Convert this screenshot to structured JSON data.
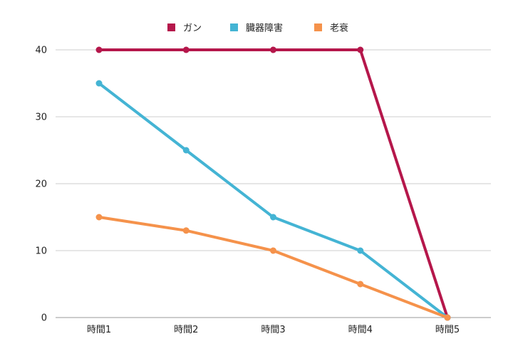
{
  "chart_data": {
    "type": "line",
    "categories": [
      "時間1",
      "時間2",
      "時間3",
      "時間4",
      "時間5"
    ],
    "series": [
      {
        "name": "ガン",
        "color": "#b5174b",
        "values": [
          40,
          40,
          40,
          40,
          0
        ]
      },
      {
        "name": "臓器障害",
        "color": "#44b4d4",
        "values": [
          35,
          25,
          15,
          10,
          0
        ]
      },
      {
        "name": "老衰",
        "color": "#f5924b",
        "values": [
          15,
          13,
          10,
          5,
          0
        ]
      }
    ],
    "yticks": [
      "0",
      "10",
      "20",
      "30",
      "40"
    ],
    "ylim": [
      0,
      40
    ],
    "grid": true,
    "legend_position": "top-center"
  }
}
